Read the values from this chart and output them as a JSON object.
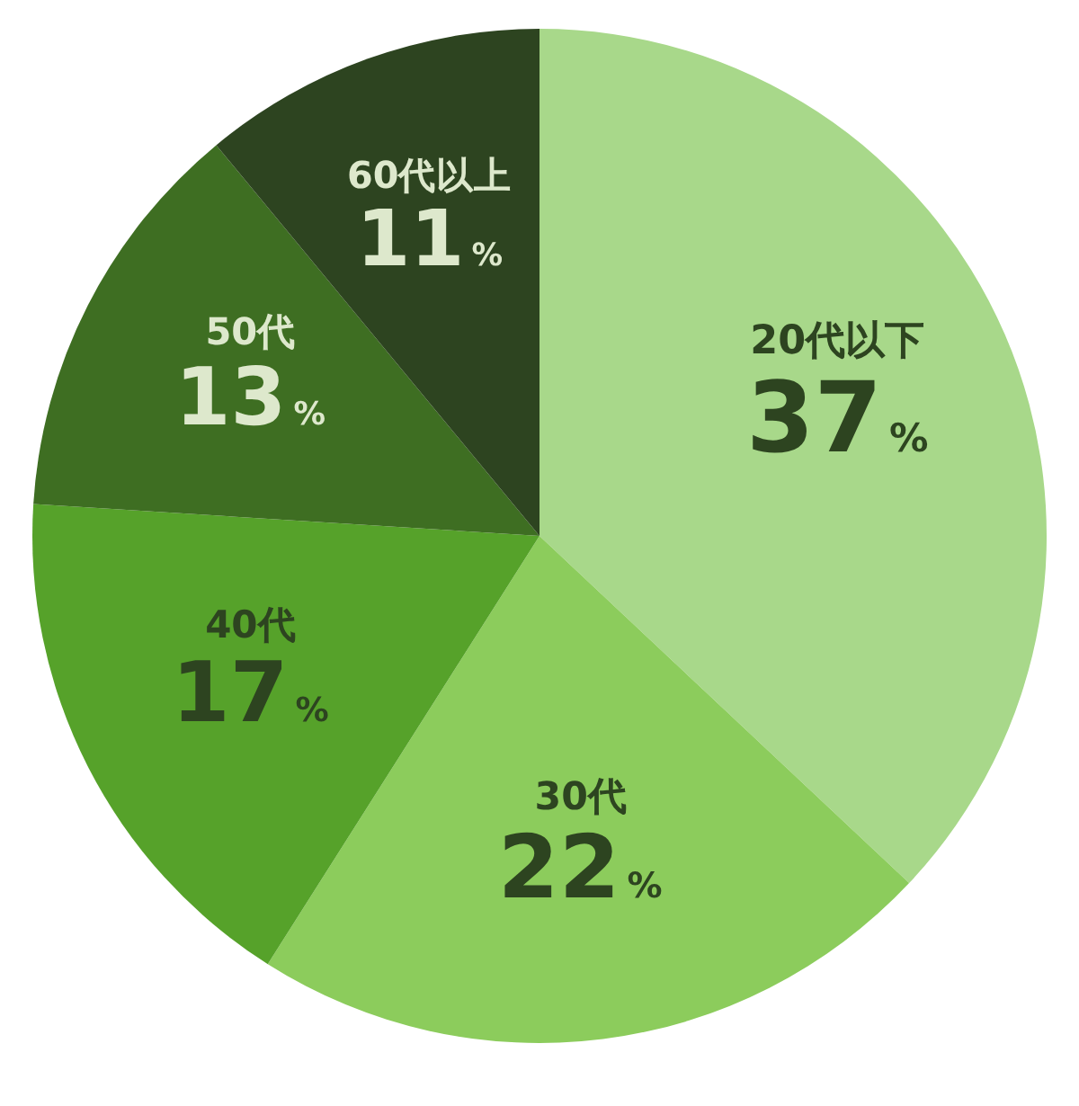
{
  "chart_data": {
    "type": "pie",
    "categories": [
      "20代以下",
      "30代",
      "40代",
      "50代",
      "60代以上"
    ],
    "values": [
      37,
      22,
      17,
      13,
      11
    ],
    "value_labels": [
      "37%",
      "22%",
      "17%",
      "13%",
      "11%"
    ],
    "colors": [
      "#a8d88a",
      "#8ccc5c",
      "#56a22a",
      "#3e6e22",
      "#2d4420"
    ]
  }
}
